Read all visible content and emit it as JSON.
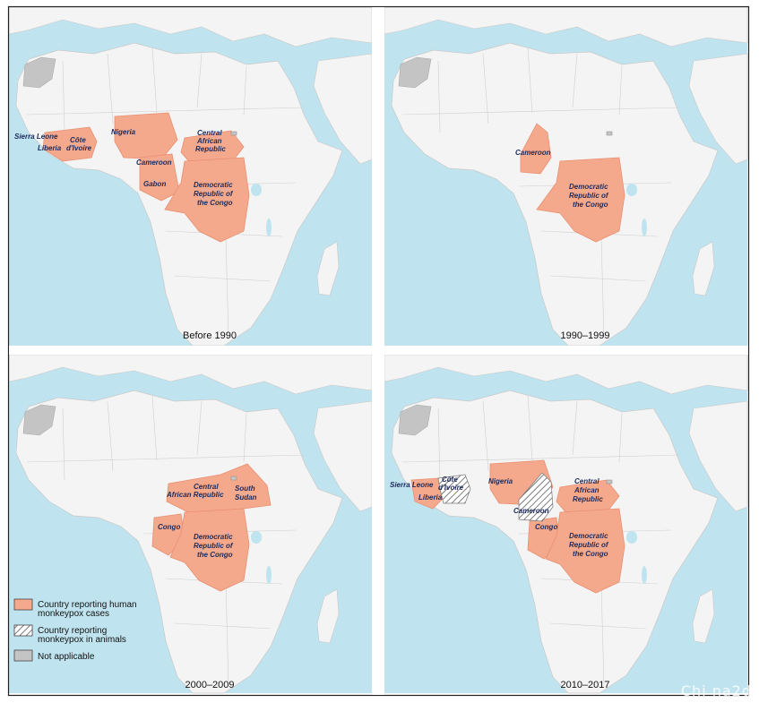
{
  "colors": {
    "ocean": "#bfe4ef",
    "land": "#f4f4f4",
    "land_border": "#c9c9c9",
    "reporting_human": "#f4a98c",
    "reporting_human_border": "#e98f71",
    "not_applicable": "#c4c4c4",
    "label": "#1d2a5c"
  },
  "panels": [
    {
      "title": "Before 1990",
      "labels": [
        "Sierra Leone",
        "Côte",
        "d'Ivoire",
        "Liberia",
        "Nigeria",
        "Central",
        "African",
        "Republic",
        "Cameroon",
        "Gabon",
        "Democratic",
        "Republic of",
        "the Congo"
      ]
    },
    {
      "title": "1990–1999",
      "labels": [
        "Cameroon",
        "Democratic",
        "Republic of",
        "the Congo"
      ]
    },
    {
      "title": "2000–2009",
      "labels": [
        "Central",
        "African Republic",
        "South",
        "Sudan",
        "Congo",
        "Democratic",
        "Republic of",
        "the Congo"
      ]
    },
    {
      "title": "2010–2017",
      "labels": [
        "Côte",
        "d'Ivoire",
        "Sierra Leone",
        "Liberia",
        "Nigeria",
        "Cameroon",
        "Congo",
        "Central",
        "African",
        "Republic",
        "Democratic",
        "Republic of",
        "the Congo"
      ]
    }
  ],
  "legend": {
    "items": [
      {
        "line1": "Country reporting human",
        "line2": "monkeypox cases",
        "symbol": "solid"
      },
      {
        "line1": "Country reporting",
        "line2": "monkeypox in animals",
        "symbol": "hatched"
      },
      {
        "line1": "Not applicable",
        "line2": "",
        "symbol": "gray"
      }
    ]
  },
  "watermark": "Chi  na2d"
}
